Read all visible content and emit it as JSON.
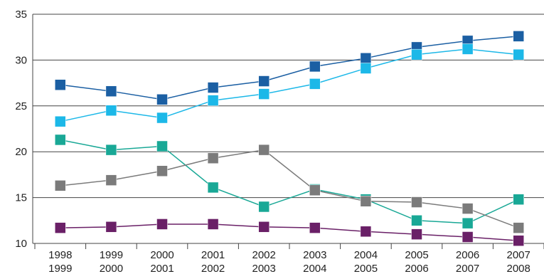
{
  "chart_data": {
    "type": "line",
    "categories": [
      [
        "1998",
        "1999"
      ],
      [
        "1999",
        "2000"
      ],
      [
        "2000",
        "2001"
      ],
      [
        "2001",
        "2002"
      ],
      [
        "2002",
        "2003"
      ],
      [
        "2003",
        "2004"
      ],
      [
        "2004",
        "2005"
      ],
      [
        "2005",
        "2006"
      ],
      [
        "2006",
        "2007"
      ],
      [
        "2007",
        "2008"
      ]
    ],
    "series": [
      {
        "color": "#1b5fa3",
        "values": [
          27.3,
          26.6,
          25.7,
          27.0,
          27.7,
          29.3,
          30.2,
          31.4,
          32.1,
          32.6
        ]
      },
      {
        "color": "#1cb8e8",
        "values": [
          23.3,
          24.5,
          23.7,
          25.6,
          26.3,
          27.4,
          29.1,
          30.6,
          31.2,
          30.6
        ]
      },
      {
        "color": "#19a896",
        "values": [
          21.3,
          20.2,
          20.6,
          16.1,
          14.0,
          15.9,
          14.8,
          12.5,
          12.2,
          14.8
        ]
      },
      {
        "color": "#7b7b7b",
        "values": [
          16.3,
          16.9,
          17.9,
          19.3,
          20.2,
          15.8,
          14.6,
          14.5,
          13.8,
          11.7
        ]
      },
      {
        "color": "#6a2067",
        "values": [
          11.7,
          11.8,
          12.1,
          12.1,
          11.8,
          11.7,
          11.3,
          11.0,
          10.7,
          10.3
        ]
      }
    ],
    "ylim": [
      10,
      35
    ],
    "yticks": [
      10,
      15,
      20,
      25,
      30,
      35
    ],
    "grid": true
  }
}
